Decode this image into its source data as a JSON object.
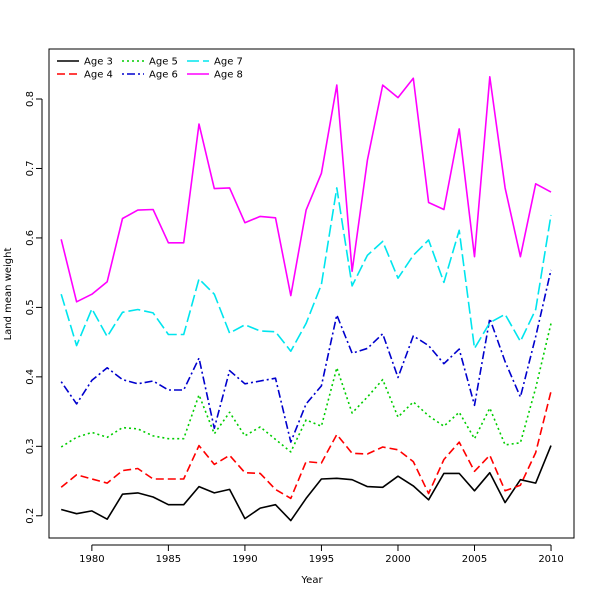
{
  "chart_data": {
    "type": "line",
    "xlabel": "Year",
    "ylabel": "Land mean weight",
    "xlim": [
      1977.2,
      2011.5
    ],
    "ylim": [
      0.168,
      0.872
    ],
    "x_ticks": [
      1980,
      1985,
      1990,
      1995,
      2000,
      2005,
      2010
    ],
    "y_ticks": [
      0.2,
      0.3,
      0.4,
      0.5,
      0.6,
      0.7,
      0.8
    ],
    "legend_position": "top-left",
    "grid": false,
    "x": [
      1978,
      1979,
      1980,
      1981,
      1982,
      1983,
      1984,
      1985,
      1986,
      1987,
      1988,
      1989,
      1990,
      1991,
      1992,
      1993,
      1994,
      1995,
      1996,
      1997,
      1998,
      1999,
      2000,
      2001,
      2002,
      2003,
      2004,
      2005,
      2006,
      2007,
      2008,
      2009,
      2010
    ],
    "series": [
      {
        "name": "Age 3",
        "color": "#000000",
        "dash": "solid",
        "values": [
          0.209,
          0.203,
          0.207,
          0.195,
          0.231,
          0.233,
          0.227,
          0.216,
          0.216,
          0.242,
          0.233,
          0.238,
          0.196,
          0.211,
          0.216,
          0.193,
          0.225,
          0.253,
          0.254,
          0.252,
          0.242,
          0.241,
          0.257,
          0.243,
          0.223,
          0.261,
          0.261,
          0.236,
          0.262,
          0.219,
          0.252,
          0.247,
          0.301
        ]
      },
      {
        "name": "Age 4",
        "color": "#ff0000",
        "dash": "dashed",
        "values": [
          0.241,
          0.259,
          0.253,
          0.247,
          0.265,
          0.268,
          0.253,
          0.253,
          0.253,
          0.301,
          0.274,
          0.287,
          0.262,
          0.261,
          0.238,
          0.225,
          0.278,
          0.276,
          0.317,
          0.29,
          0.289,
          0.299,
          0.295,
          0.278,
          0.232,
          0.281,
          0.306,
          0.264,
          0.287,
          0.236,
          0.244,
          0.291,
          0.379
        ]
      },
      {
        "name": "Age 5",
        "color": "#00cd00",
        "dash": "dotted",
        "values": [
          0.299,
          0.313,
          0.32,
          0.313,
          0.327,
          0.325,
          0.315,
          0.311,
          0.311,
          0.374,
          0.318,
          0.349,
          0.315,
          0.328,
          0.31,
          0.292,
          0.338,
          0.329,
          0.413,
          0.348,
          0.371,
          0.396,
          0.342,
          0.364,
          0.344,
          0.329,
          0.349,
          0.311,
          0.355,
          0.302,
          0.305,
          0.384,
          0.477
        ]
      },
      {
        "name": "Age 6",
        "color": "#0000cd",
        "dash": "dotdash",
        "values": [
          0.393,
          0.361,
          0.395,
          0.413,
          0.396,
          0.39,
          0.394,
          0.381,
          0.381,
          0.427,
          0.326,
          0.409,
          0.39,
          0.394,
          0.398,
          0.306,
          0.361,
          0.387,
          0.489,
          0.434,
          0.441,
          0.462,
          0.399,
          0.459,
          0.445,
          0.419,
          0.44,
          0.359,
          0.484,
          0.422,
          0.371,
          0.458,
          0.554
        ]
      },
      {
        "name": "Age 7",
        "color": "#00e5ee",
        "dash": "longdash",
        "values": [
          0.519,
          0.445,
          0.498,
          0.458,
          0.493,
          0.497,
          0.492,
          0.461,
          0.461,
          0.541,
          0.519,
          0.463,
          0.475,
          0.466,
          0.465,
          0.437,
          0.477,
          0.533,
          0.672,
          0.531,
          0.575,
          0.595,
          0.542,
          0.575,
          0.597,
          0.536,
          0.611,
          0.441,
          0.478,
          0.49,
          0.451,
          0.497,
          0.633
        ]
      },
      {
        "name": "Age 8",
        "color": "#ff00ff",
        "dash": "solid",
        "values": [
          0.598,
          0.508,
          0.519,
          0.537,
          0.628,
          0.64,
          0.641,
          0.593,
          0.593,
          0.764,
          0.671,
          0.672,
          0.622,
          0.631,
          0.629,
          0.517,
          0.64,
          0.693,
          0.82,
          0.552,
          0.712,
          0.82,
          0.802,
          0.83,
          0.651,
          0.641,
          0.757,
          0.573,
          0.832,
          0.672,
          0.573,
          0.678,
          0.666
        ]
      }
    ]
  }
}
